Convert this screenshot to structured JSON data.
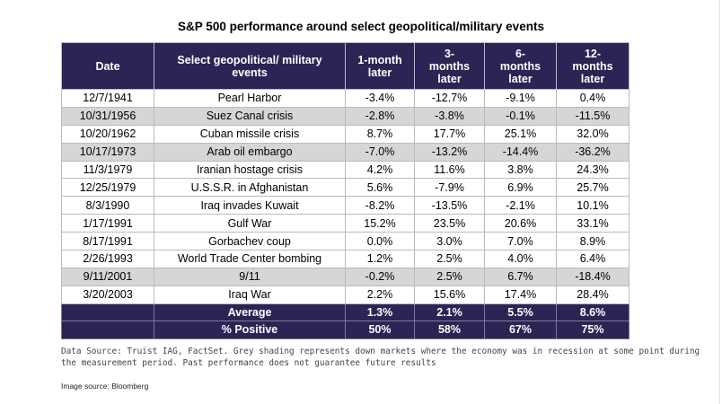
{
  "title": "S&P 500 performance around select geopolitical/military events",
  "table": {
    "headers": [
      "Date",
      "Select geopolitical/ military events",
      "1-month later",
      "3-months later",
      "6-months later",
      "12-months later"
    ],
    "rows": [
      {
        "date": "12/7/1941",
        "event": "Pearl Harbor",
        "m1": "-3.4%",
        "m3": "-12.7%",
        "m6": "-9.1%",
        "m12": "0.4%",
        "recession": false
      },
      {
        "date": "10/31/1956",
        "event": "Suez Canal crisis",
        "m1": "-2.8%",
        "m3": "-3.8%",
        "m6": "-0.1%",
        "m12": "-11.5%",
        "recession": true
      },
      {
        "date": "10/20/1962",
        "event": "Cuban missile crisis",
        "m1": "8.7%",
        "m3": "17.7%",
        "m6": "25.1%",
        "m12": "32.0%",
        "recession": false
      },
      {
        "date": "10/17/1973",
        "event": "Arab oil embargo",
        "m1": "-7.0%",
        "m3": "-13.2%",
        "m6": "-14.4%",
        "m12": "-36.2%",
        "recession": true
      },
      {
        "date": "11/3/1979",
        "event": "Iranian hostage crisis",
        "m1": "4.2%",
        "m3": "11.6%",
        "m6": "3.8%",
        "m12": "24.3%",
        "recession": false
      },
      {
        "date": "12/25/1979",
        "event": "U.S.S.R. in Afghanistan",
        "m1": "5.6%",
        "m3": "-7.9%",
        "m6": "6.9%",
        "m12": "25.7%",
        "recession": false
      },
      {
        "date": "8/3/1990",
        "event": "Iraq invades Kuwait",
        "m1": "-8.2%",
        "m3": "-13.5%",
        "m6": "-2.1%",
        "m12": "10.1%",
        "recession": false
      },
      {
        "date": "1/17/1991",
        "event": "Gulf War",
        "m1": "15.2%",
        "m3": "23.5%",
        "m6": "20.6%",
        "m12": "33.1%",
        "recession": false
      },
      {
        "date": "8/17/1991",
        "event": "Gorbachev coup",
        "m1": "0.0%",
        "m3": "3.0%",
        "m6": "7.0%",
        "m12": "8.9%",
        "recession": false
      },
      {
        "date": "2/26/1993",
        "event": "World Trade Center bombing",
        "m1": "1.2%",
        "m3": "2.5%",
        "m6": "4.0%",
        "m12": "6.4%",
        "recession": false
      },
      {
        "date": "9/11/2001",
        "event": "9/11",
        "m1": "-0.2%",
        "m3": "2.5%",
        "m6": "6.7%",
        "m12": "-18.4%",
        "recession": true
      },
      {
        "date": "3/20/2003",
        "event": "Iraq War",
        "m1": "2.2%",
        "m3": "15.6%",
        "m6": "17.4%",
        "m12": "28.4%",
        "recession": false
      }
    ],
    "summary": [
      {
        "label": "Average",
        "m1": "1.3%",
        "m3": "2.1%",
        "m6": "5.5%",
        "m12": "8.6%"
      },
      {
        "label": "% Positive",
        "m1": "50%",
        "m3": "58%",
        "m6": "67%",
        "m12": "75%"
      }
    ]
  },
  "footnote": "Data Source: Truist IAG, FactSet. Grey shading represents down markets where the economy was in recession at some point during the measurement period. Past performance does not guarantee future results",
  "image_source": "Image source: Bloomberg",
  "colors": {
    "header_bg": "#2d2354",
    "recession_shade": "#d6d6d6"
  }
}
